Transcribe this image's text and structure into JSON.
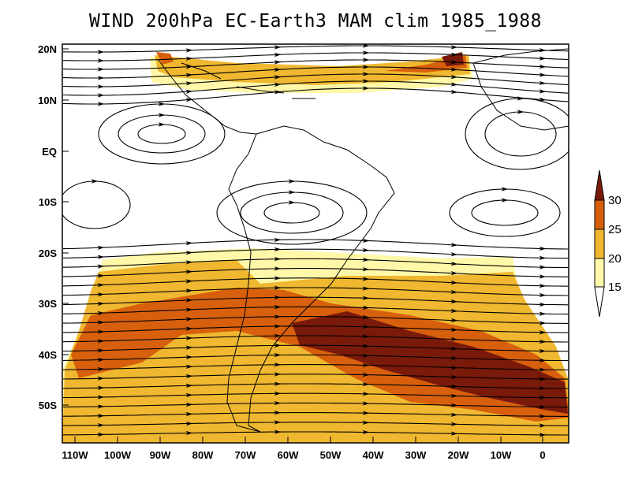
{
  "title": "WIND 200hPa EC-Earth3 MAM clim 1985_1988",
  "lat_labels": [
    "20N",
    "10N",
    "EQ",
    "10S",
    "20S",
    "30S",
    "40S",
    "50S"
  ],
  "lon_labels": [
    "110W",
    "100W",
    "90W",
    "80W",
    "70W",
    "60W",
    "50W",
    "40W",
    "30W",
    "20W",
    "10W",
    "0"
  ],
  "colorbar": {
    "labels": [
      "30",
      "25",
      "20",
      "15"
    ],
    "colors": [
      "#7a1a0a",
      "#d8600c",
      "#f0b830",
      "#fff8a8"
    ]
  },
  "shading_colors": {
    "c15": "#fff8a8",
    "c20": "#f0b830",
    "c25": "#d8600c",
    "c30": "#7a1a0a"
  }
}
